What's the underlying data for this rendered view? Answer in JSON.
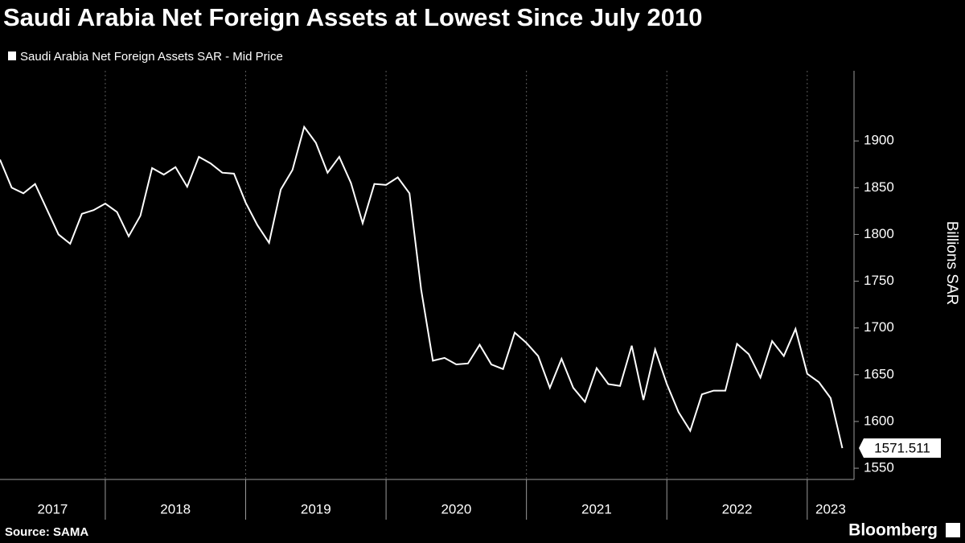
{
  "chart_data": {
    "type": "line",
    "title": "Saudi Arabia Net Foreign Assets at Lowest Since July 2010",
    "y_label": "Billions SAR",
    "source": "Source: SAMA",
    "brand": "Bloomberg",
    "x": [
      "2017-04",
      "2017-05",
      "2017-06",
      "2017-07",
      "2017-08",
      "2017-09",
      "2017-10",
      "2017-11",
      "2017-12",
      "2018-01",
      "2018-02",
      "2018-03",
      "2018-04",
      "2018-05",
      "2018-06",
      "2018-07",
      "2018-08",
      "2018-09",
      "2018-10",
      "2018-11",
      "2018-12",
      "2019-01",
      "2019-02",
      "2019-03",
      "2019-04",
      "2019-05",
      "2019-06",
      "2019-07",
      "2019-08",
      "2019-09",
      "2019-10",
      "2019-11",
      "2019-12",
      "2020-01",
      "2020-02",
      "2020-03",
      "2020-04",
      "2020-05",
      "2020-06",
      "2020-07",
      "2020-08",
      "2020-09",
      "2020-10",
      "2020-11",
      "2020-12",
      "2021-01",
      "2021-02",
      "2021-03",
      "2021-04",
      "2021-05",
      "2021-06",
      "2021-07",
      "2021-08",
      "2021-09",
      "2021-10",
      "2021-11",
      "2021-12",
      "2022-01",
      "2022-02",
      "2022-03",
      "2022-04",
      "2022-05",
      "2022-06",
      "2022-07",
      "2022-08",
      "2022-09",
      "2022-10",
      "2022-11",
      "2022-12",
      "2023-01",
      "2023-02",
      "2023-03",
      "2023-04"
    ],
    "series": [
      {
        "name": "Saudi Arabia Net Foreign Assets SAR - Mid Price",
        "color": "#ffffff",
        "values": [
          1880,
          1850,
          1844,
          1854,
          1827,
          1800,
          1790,
          1822,
          1826,
          1833,
          1824,
          1798,
          1820,
          1871,
          1864,
          1872,
          1851,
          1883,
          1876,
          1866,
          1865,
          1834,
          1810,
          1791,
          1848,
          1869,
          1915,
          1898,
          1866,
          1883,
          1855,
          1812,
          1854,
          1853,
          1861,
          1844,
          1741,
          1665,
          1668,
          1661,
          1662,
          1682,
          1661,
          1656,
          1695,
          1684,
          1670,
          1636,
          1667,
          1636,
          1621,
          1657,
          1640,
          1638,
          1681,
          1623,
          1677,
          1640,
          1610,
          1590,
          1629,
          1633,
          1633,
          1683,
          1672,
          1647,
          1686,
          1670,
          1699,
          1651,
          1642,
          1625,
          1571.511
        ]
      }
    ],
    "xlim": [
      "2017-04",
      "2023-05"
    ],
    "xticks": [
      2017,
      2018,
      2019,
      2020,
      2021,
      2022,
      2023
    ],
    "ylim": [
      1538,
      1975
    ],
    "yticks": [
      1550,
      1600,
      1650,
      1700,
      1750,
      1800,
      1850,
      1900
    ],
    "grid": true
  }
}
